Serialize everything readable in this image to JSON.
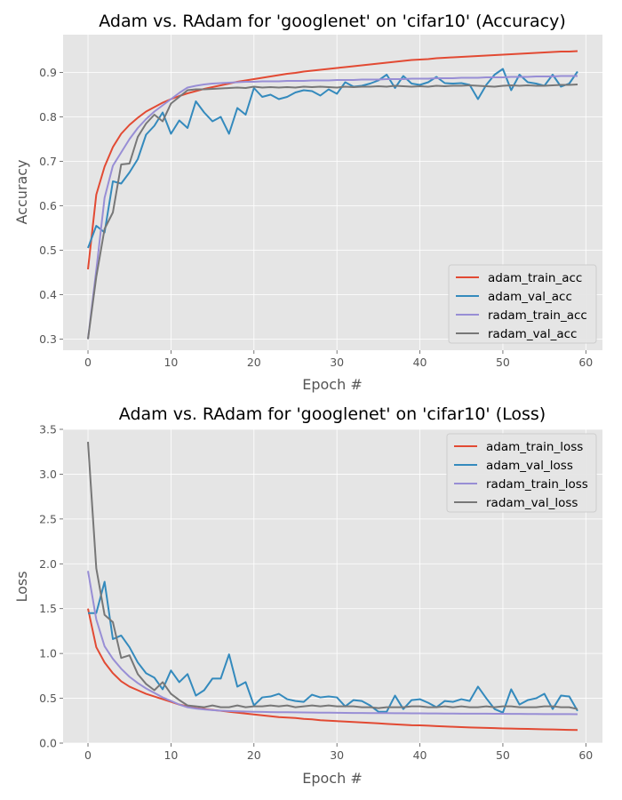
{
  "chart_data": [
    {
      "type": "line",
      "title": "Adam vs. RAdam for 'googlenet' on 'cifar10' (Accuracy)",
      "xlabel": "Epoch #",
      "ylabel": "Accuracy",
      "xlim": [
        -3,
        62
      ],
      "ylim": [
        0.275,
        0.985
      ],
      "xticks": [
        0,
        10,
        20,
        30,
        40,
        50,
        60
      ],
      "yticks": [
        0.3,
        0.4,
        0.5,
        0.6,
        0.7,
        0.8,
        0.9
      ],
      "xtick_labels": [
        "0",
        "10",
        "20",
        "30",
        "40",
        "50",
        "60"
      ],
      "ytick_labels": [
        "0.3",
        "0.4",
        "0.5",
        "0.6",
        "0.7",
        "0.8",
        "0.9"
      ],
      "grid": true,
      "legend_position": "lower-right",
      "series": [
        {
          "name": "adam_train_acc",
          "color": "#E24A33",
          "values": [
            0.457,
            0.625,
            0.688,
            0.732,
            0.762,
            0.782,
            0.798,
            0.812,
            0.822,
            0.832,
            0.84,
            0.847,
            0.853,
            0.858,
            0.863,
            0.867,
            0.871,
            0.875,
            0.879,
            0.882,
            0.885,
            0.888,
            0.891,
            0.894,
            0.897,
            0.899,
            0.902,
            0.904,
            0.906,
            0.908,
            0.91,
            0.912,
            0.914,
            0.916,
            0.918,
            0.92,
            0.922,
            0.924,
            0.926,
            0.928,
            0.929,
            0.93,
            0.932,
            0.933,
            0.934,
            0.935,
            0.936,
            0.937,
            0.938,
            0.939,
            0.94,
            0.941,
            0.942,
            0.943,
            0.944,
            0.945,
            0.946,
            0.947,
            0.947,
            0.948
          ]
        },
        {
          "name": "adam_val_acc",
          "color": "#348ABD",
          "values": [
            0.505,
            0.555,
            0.54,
            0.655,
            0.65,
            0.675,
            0.705,
            0.76,
            0.78,
            0.81,
            0.762,
            0.792,
            0.775,
            0.835,
            0.81,
            0.79,
            0.8,
            0.762,
            0.82,
            0.805,
            0.865,
            0.845,
            0.85,
            0.84,
            0.845,
            0.855,
            0.86,
            0.858,
            0.848,
            0.862,
            0.852,
            0.878,
            0.868,
            0.87,
            0.875,
            0.882,
            0.895,
            0.865,
            0.892,
            0.875,
            0.872,
            0.878,
            0.89,
            0.876,
            0.875,
            0.876,
            0.872,
            0.84,
            0.872,
            0.895,
            0.908,
            0.86,
            0.895,
            0.878,
            0.875,
            0.87,
            0.895,
            0.868,
            0.875,
            0.902
          ]
        },
        {
          "name": "radam_train_acc",
          "color": "#988ED5",
          "values": [
            0.3,
            0.455,
            0.618,
            0.69,
            0.72,
            0.75,
            0.775,
            0.795,
            0.812,
            0.826,
            0.84,
            0.854,
            0.866,
            0.87,
            0.873,
            0.875,
            0.876,
            0.877,
            0.878,
            0.879,
            0.879,
            0.88,
            0.88,
            0.88,
            0.881,
            0.881,
            0.881,
            0.882,
            0.882,
            0.882,
            0.883,
            0.883,
            0.883,
            0.884,
            0.884,
            0.884,
            0.885,
            0.885,
            0.885,
            0.886,
            0.886,
            0.886,
            0.887,
            0.887,
            0.887,
            0.888,
            0.888,
            0.888,
            0.889,
            0.889,
            0.889,
            0.89,
            0.89,
            0.89,
            0.891,
            0.891,
            0.891,
            0.892,
            0.892,
            0.892
          ]
        },
        {
          "name": "radam_val_acc",
          "color": "#777777",
          "values": [
            0.3,
            0.44,
            0.548,
            0.585,
            0.693,
            0.695,
            0.755,
            0.785,
            0.805,
            0.79,
            0.83,
            0.845,
            0.86,
            0.862,
            0.862,
            0.863,
            0.864,
            0.865,
            0.866,
            0.865,
            0.868,
            0.866,
            0.867,
            0.866,
            0.867,
            0.866,
            0.868,
            0.867,
            0.868,
            0.867,
            0.866,
            0.868,
            0.867,
            0.868,
            0.868,
            0.869,
            0.868,
            0.87,
            0.869,
            0.868,
            0.869,
            0.868,
            0.87,
            0.869,
            0.87,
            0.87,
            0.871,
            0.87,
            0.869,
            0.868,
            0.87,
            0.871,
            0.87,
            0.871,
            0.87,
            0.87,
            0.871,
            0.872,
            0.872,
            0.873
          ]
        }
      ]
    },
    {
      "type": "line",
      "title": "Adam vs. RAdam for 'googlenet' on 'cifar10' (Loss)",
      "xlabel": "Epoch #",
      "ylabel": "Loss",
      "xlim": [
        -3,
        62
      ],
      "ylim": [
        0.0,
        3.5
      ],
      "xticks": [
        0,
        10,
        20,
        30,
        40,
        50,
        60
      ],
      "yticks": [
        0.0,
        0.5,
        1.0,
        1.5,
        2.0,
        2.5,
        3.0,
        3.5
      ],
      "xtick_labels": [
        "0",
        "10",
        "20",
        "30",
        "40",
        "50",
        "60"
      ],
      "ytick_labels": [
        "0.0",
        "0.5",
        "1.0",
        "1.5",
        "2.0",
        "2.5",
        "3.0",
        "3.5"
      ],
      "grid": true,
      "legend_position": "top-right",
      "series": [
        {
          "name": "adam_train_loss",
          "color": "#E24A33",
          "values": [
            1.5,
            1.07,
            0.9,
            0.78,
            0.69,
            0.63,
            0.59,
            0.55,
            0.52,
            0.49,
            0.46,
            0.43,
            0.41,
            0.39,
            0.38,
            0.37,
            0.36,
            0.35,
            0.34,
            0.33,
            0.32,
            0.31,
            0.3,
            0.29,
            0.285,
            0.28,
            0.27,
            0.265,
            0.255,
            0.25,
            0.245,
            0.24,
            0.235,
            0.23,
            0.225,
            0.22,
            0.215,
            0.21,
            0.205,
            0.2,
            0.198,
            0.194,
            0.19,
            0.186,
            0.182,
            0.178,
            0.175,
            0.172,
            0.17,
            0.167,
            0.164,
            0.162,
            0.16,
            0.158,
            0.156,
            0.154,
            0.152,
            0.15,
            0.148,
            0.146
          ]
        },
        {
          "name": "adam_val_loss",
          "color": "#348ABD",
          "values": [
            1.45,
            1.45,
            1.8,
            1.16,
            1.2,
            1.07,
            0.9,
            0.78,
            0.73,
            0.6,
            0.81,
            0.68,
            0.77,
            0.53,
            0.59,
            0.72,
            0.72,
            0.99,
            0.63,
            0.68,
            0.42,
            0.51,
            0.52,
            0.55,
            0.49,
            0.47,
            0.46,
            0.54,
            0.51,
            0.52,
            0.51,
            0.41,
            0.48,
            0.47,
            0.42,
            0.35,
            0.35,
            0.53,
            0.38,
            0.48,
            0.49,
            0.45,
            0.4,
            0.47,
            0.46,
            0.49,
            0.47,
            0.63,
            0.5,
            0.38,
            0.34,
            0.6,
            0.43,
            0.48,
            0.5,
            0.55,
            0.38,
            0.53,
            0.52,
            0.36
          ]
        },
        {
          "name": "radam_train_loss",
          "color": "#988ED5",
          "values": [
            1.92,
            1.38,
            1.08,
            0.94,
            0.83,
            0.74,
            0.67,
            0.61,
            0.56,
            0.51,
            0.47,
            0.43,
            0.4,
            0.385,
            0.375,
            0.368,
            0.362,
            0.358,
            0.355,
            0.352,
            0.35,
            0.348,
            0.346,
            0.345,
            0.344,
            0.343,
            0.342,
            0.341,
            0.34,
            0.339,
            0.338,
            0.337,
            0.336,
            0.336,
            0.335,
            0.334,
            0.334,
            0.333,
            0.333,
            0.332,
            0.332,
            0.331,
            0.331,
            0.33,
            0.33,
            0.329,
            0.329,
            0.328,
            0.328,
            0.327,
            0.327,
            0.326,
            0.326,
            0.325,
            0.325,
            0.324,
            0.324,
            0.323,
            0.323,
            0.322
          ]
        },
        {
          "name": "radam_val_loss",
          "color": "#777777",
          "values": [
            3.36,
            1.95,
            1.43,
            1.35,
            0.95,
            0.98,
            0.77,
            0.66,
            0.59,
            0.68,
            0.55,
            0.48,
            0.42,
            0.41,
            0.4,
            0.42,
            0.4,
            0.4,
            0.42,
            0.4,
            0.41,
            0.41,
            0.42,
            0.41,
            0.42,
            0.4,
            0.41,
            0.42,
            0.41,
            0.42,
            0.41,
            0.41,
            0.41,
            0.4,
            0.4,
            0.39,
            0.4,
            0.4,
            0.4,
            0.41,
            0.41,
            0.4,
            0.4,
            0.41,
            0.4,
            0.41,
            0.4,
            0.4,
            0.41,
            0.4,
            0.41,
            0.41,
            0.4,
            0.4,
            0.4,
            0.41,
            0.41,
            0.4,
            0.4,
            0.38
          ]
        }
      ]
    }
  ]
}
